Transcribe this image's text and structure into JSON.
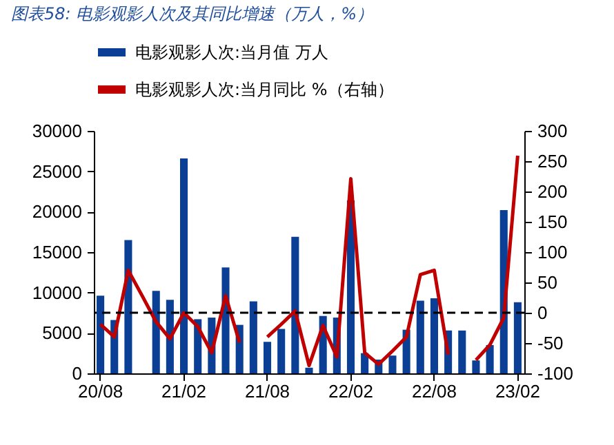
{
  "chart_data": {
    "type": "bar",
    "title": "图表58: 电影观影人次及其同比增速（万人，%）",
    "categories": [
      "20/08",
      null,
      null,
      null,
      null,
      null,
      "21/02",
      null,
      null,
      null,
      null,
      null,
      "21/08",
      null,
      null,
      null,
      null,
      null,
      "22/02",
      null,
      null,
      null,
      null,
      null,
      "22/08",
      null,
      null,
      null,
      null,
      null,
      "23/02"
    ],
    "series": [
      {
        "name": "电影观影人次:当月值 万人",
        "color": "#0b3f96",
        "values": [
          9600,
          6600,
          16500,
          null,
          10200,
          9100,
          26600,
          6700,
          6900,
          13100,
          6000,
          8900,
          3900,
          5500,
          16900,
          700,
          7100,
          6900,
          21400,
          2500,
          1700,
          2200,
          5400,
          9000,
          9300,
          5300,
          5300,
          1600,
          3500,
          20200,
          8800
        ]
      },
      {
        "name": "电影观影人次:当月同比 %（右轴）",
        "type": "line",
        "axis": "y2",
        "color": "#c00000",
        "values": [
          -19,
          -40,
          70,
          28,
          -15,
          -43,
          0,
          -23,
          -66,
          28,
          -49,
          null,
          -40,
          -19,
          3,
          -87,
          -21,
          -73,
          221,
          -66,
          -85,
          -63,
          -40,
          63,
          70,
          -69,
          null,
          -78,
          -53,
          -8,
          259
        ]
      }
    ],
    "ylim": [
      0,
      30000
    ],
    "yticks": [
      0,
      5000,
      10000,
      15000,
      20000,
      25000,
      30000
    ],
    "y2lim": [
      -100,
      300
    ],
    "y2ticks": [
      -100,
      -50,
      0,
      50,
      100,
      150,
      200,
      250,
      300
    ],
    "ref_lines": [
      {
        "axis": "y2",
        "value": 0,
        "color": "#000000",
        "line_style": "dashed"
      }
    ],
    "legend": "top",
    "grid": false
  }
}
